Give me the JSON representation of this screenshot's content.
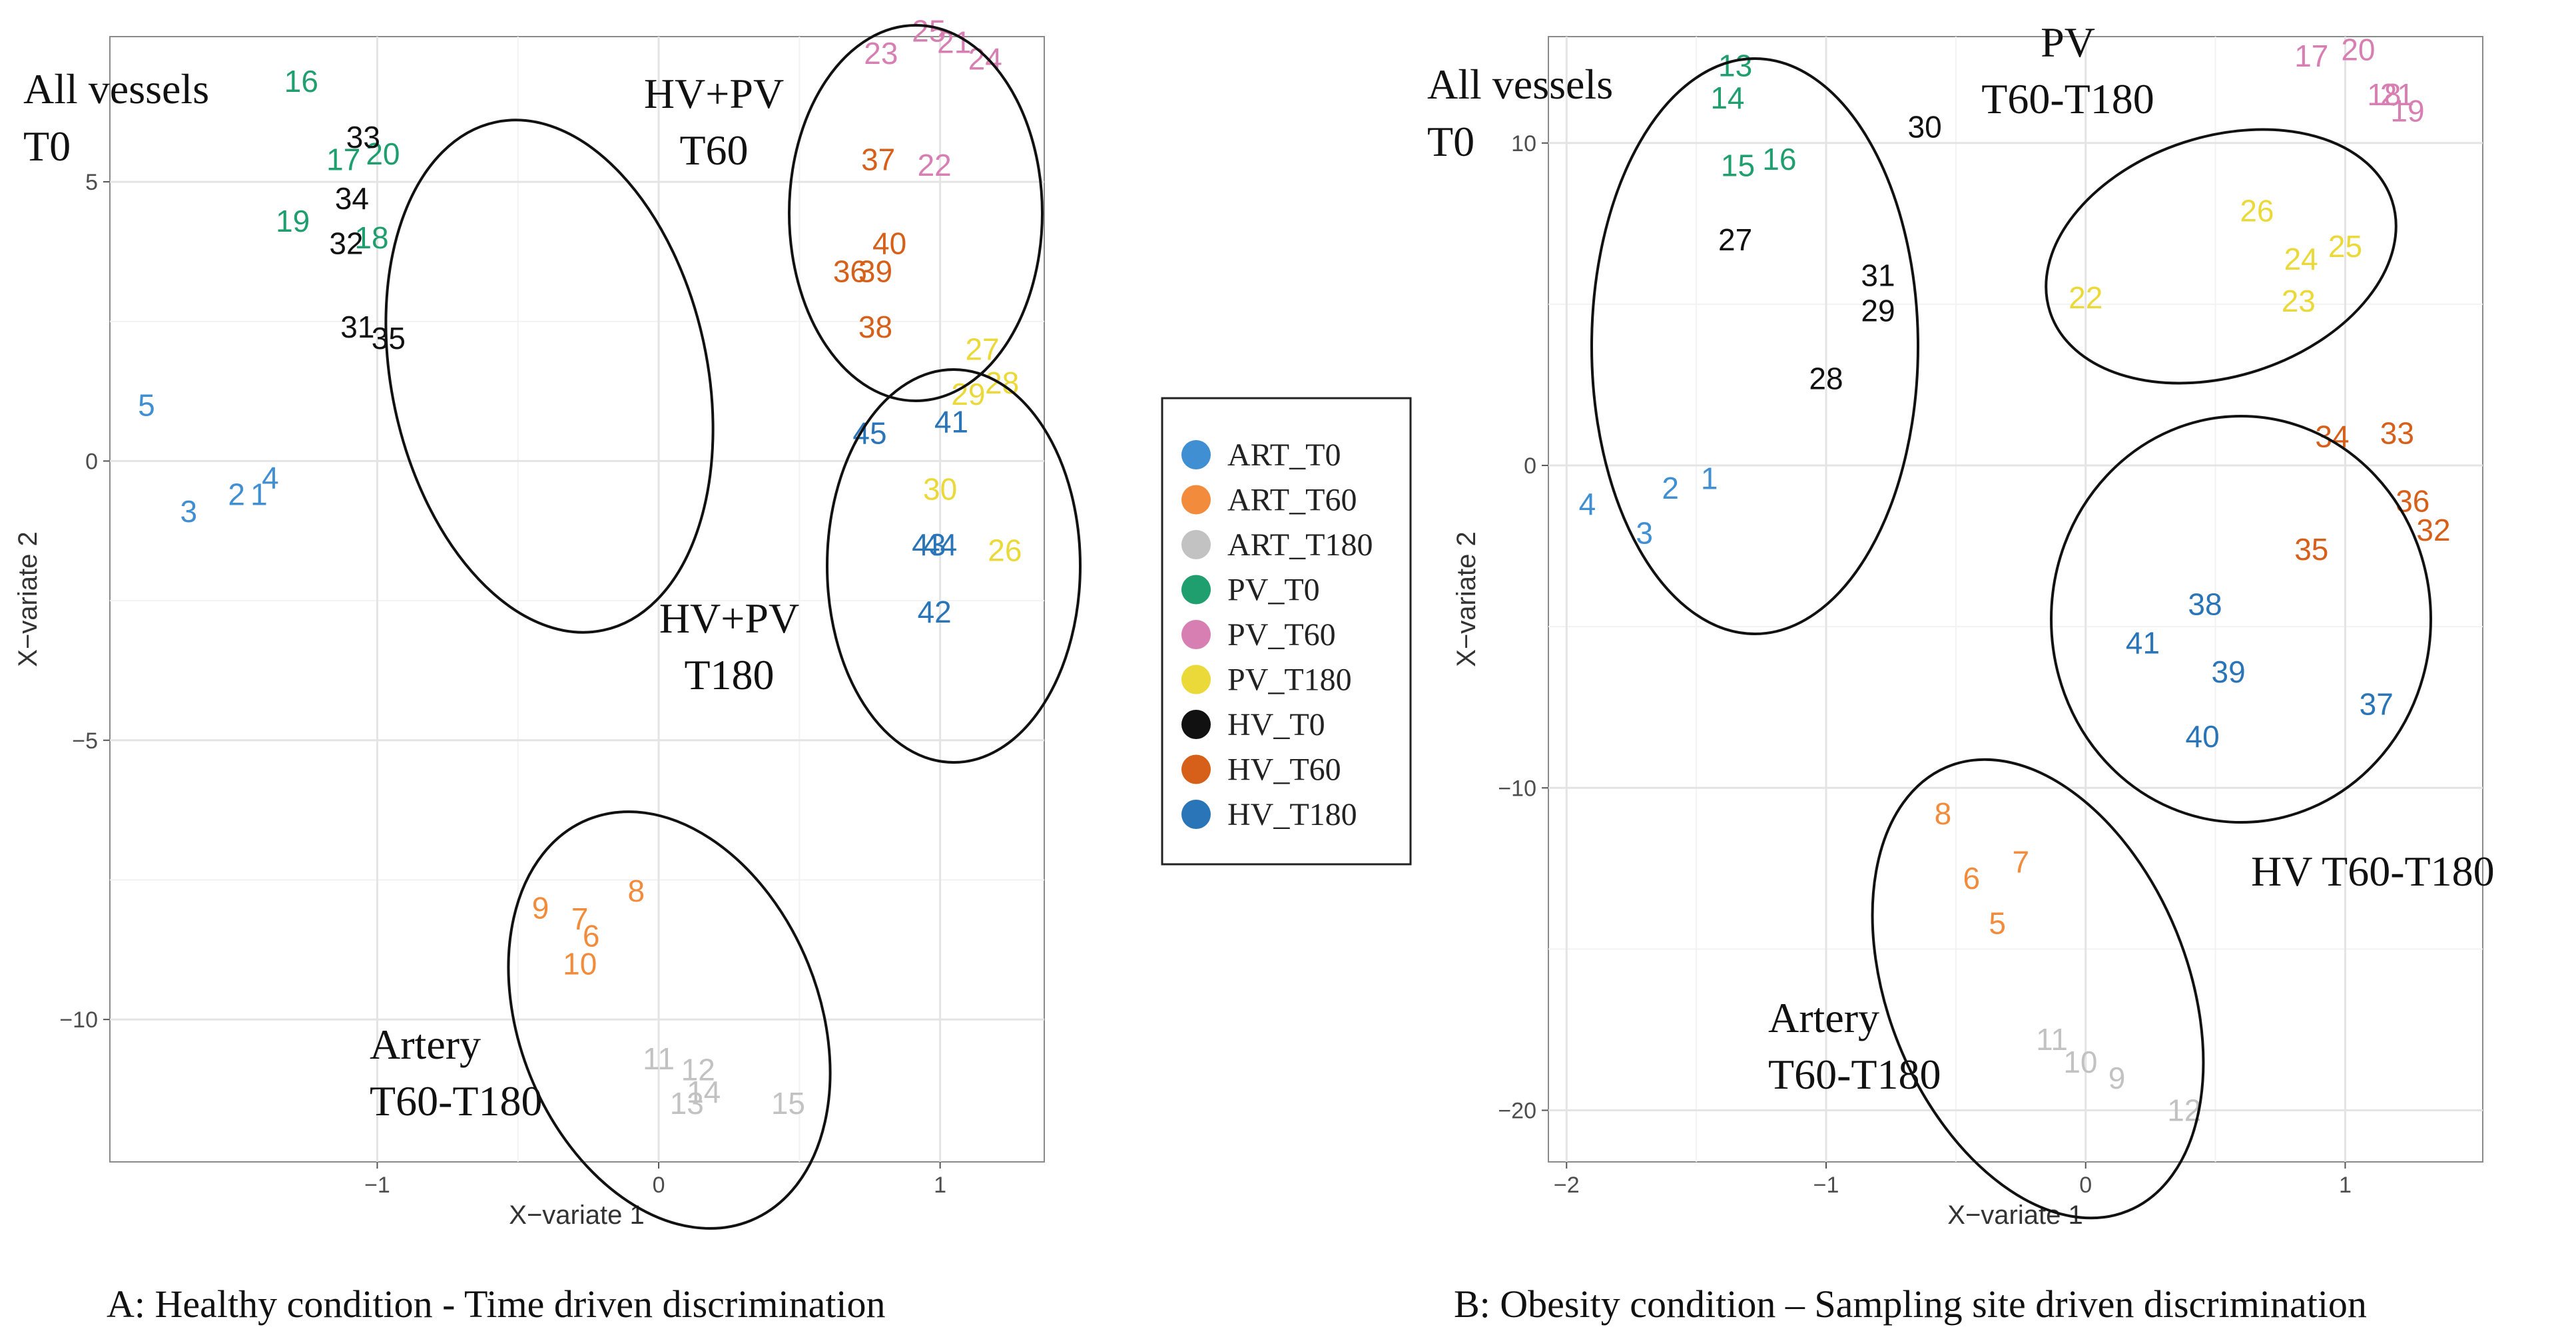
{
  "legend": [
    {
      "name": "ART_T0",
      "color": "#3f8fd2"
    },
    {
      "name": "ART_T60",
      "color": "#f28c3c"
    },
    {
      "name": "ART_T180",
      "color": "#c2c2c2"
    },
    {
      "name": "PV_T0",
      "color": "#1f9e6e"
    },
    {
      "name": "PV_T60",
      "color": "#d77fb3"
    },
    {
      "name": "PV_T180",
      "color": "#ebd93a"
    },
    {
      "name": "HV_T0",
      "color": "#111111"
    },
    {
      "name": "HV_T60",
      "color": "#d65f1a"
    },
    {
      "name": "HV_T180",
      "color": "#2a75b8"
    }
  ],
  "chart_data": [
    {
      "type": "scatter",
      "title": "",
      "caption": "A: Healthy condition - Time driven discrimination",
      "xlabel": "X−variate 1",
      "ylabel": "X−variate 2",
      "xlim": [
        -1.95,
        1.37
      ],
      "ylim": [
        -12.55,
        7.6
      ],
      "xticks": [
        -1,
        0,
        1
      ],
      "yticks": [
        5,
        0,
        -5,
        -10
      ],
      "xtick_labels": [
        "−1",
        "0",
        "1"
      ],
      "ytick_labels": [
        "5",
        "0",
        "−5",
        "−10"
      ],
      "points": [
        {
          "label": "5",
          "group": "ART_T0",
          "x": -1.82,
          "y": 1.0
        },
        {
          "label": "3",
          "group": "ART_T0",
          "x": -1.67,
          "y": -0.9
        },
        {
          "label": "2",
          "group": "ART_T0",
          "x": -1.5,
          "y": -0.6
        },
        {
          "label": "1",
          "group": "ART_T0",
          "x": -1.42,
          "y": -0.6
        },
        {
          "label": "4",
          "group": "ART_T0",
          "x": -1.38,
          "y": -0.3
        },
        {
          "label": "16",
          "group": "PV_T0",
          "x": -1.27,
          "y": 6.8
        },
        {
          "label": "17",
          "group": "PV_T0",
          "x": -1.12,
          "y": 5.4
        },
        {
          "label": "20",
          "group": "PV_T0",
          "x": -0.98,
          "y": 5.5
        },
        {
          "label": "19",
          "group": "PV_T0",
          "x": -1.3,
          "y": 4.3
        },
        {
          "label": "18",
          "group": "PV_T0",
          "x": -1.02,
          "y": 4.0
        },
        {
          "label": "33",
          "group": "HV_T0",
          "x": -1.05,
          "y": 5.8
        },
        {
          "label": "34",
          "group": "HV_T0",
          "x": -1.09,
          "y": 4.7
        },
        {
          "label": "32",
          "group": "HV_T0",
          "x": -1.11,
          "y": 3.9
        },
        {
          "label": "31",
          "group": "HV_T0",
          "x": -1.07,
          "y": 2.4
        },
        {
          "label": "35",
          "group": "HV_T0",
          "x": -0.96,
          "y": 2.2
        },
        {
          "label": "23",
          "group": "PV_T60",
          "x": 0.79,
          "y": 7.3
        },
        {
          "label": "25",
          "group": "PV_T60",
          "x": 0.96,
          "y": 7.7
        },
        {
          "label": "21",
          "group": "PV_T60",
          "x": 1.05,
          "y": 7.5
        },
        {
          "label": "24",
          "group": "PV_T60",
          "x": 1.16,
          "y": 7.2
        },
        {
          "label": "22",
          "group": "PV_T60",
          "x": 0.98,
          "y": 5.3
        },
        {
          "label": "37",
          "group": "HV_T60",
          "x": 0.78,
          "y": 5.4
        },
        {
          "label": "40",
          "group": "HV_T60",
          "x": 0.82,
          "y": 3.9
        },
        {
          "label": "36",
          "group": "HV_T60",
          "x": 0.68,
          "y": 3.4
        },
        {
          "label": "39",
          "group": "HV_T60",
          "x": 0.77,
          "y": 3.4
        },
        {
          "label": "38",
          "group": "HV_T60",
          "x": 0.77,
          "y": 2.4
        },
        {
          "label": "27",
          "group": "PV_T180",
          "x": 1.15,
          "y": 2.0
        },
        {
          "label": "28",
          "group": "PV_T180",
          "x": 1.22,
          "y": 1.4
        },
        {
          "label": "29",
          "group": "PV_T180",
          "x": 1.1,
          "y": 1.2
        },
        {
          "label": "30",
          "group": "PV_T180",
          "x": 1.0,
          "y": -0.5
        },
        {
          "label": "26",
          "group": "PV_T180",
          "x": 1.23,
          "y": -1.6
        },
        {
          "label": "45",
          "group": "HV_T180",
          "x": 0.75,
          "y": 0.5
        },
        {
          "label": "41",
          "group": "HV_T180",
          "x": 1.04,
          "y": 0.7
        },
        {
          "label": "43",
          "group": "HV_T180",
          "x": 0.96,
          "y": -1.5
        },
        {
          "label": "44",
          "group": "HV_T180",
          "x": 1.0,
          "y": -1.5
        },
        {
          "label": "42",
          "group": "HV_T180",
          "x": 0.98,
          "y": -2.7
        },
        {
          "label": "8",
          "group": "ART_T60",
          "x": -0.08,
          "y": -7.7
        },
        {
          "label": "9",
          "group": "ART_T60",
          "x": -0.42,
          "y": -8.0
        },
        {
          "label": "7",
          "group": "ART_T60",
          "x": -0.28,
          "y": -8.2
        },
        {
          "label": "6",
          "group": "ART_T60",
          "x": -0.24,
          "y": -8.5
        },
        {
          "label": "10",
          "group": "ART_T60",
          "x": -0.28,
          "y": -9.0
        },
        {
          "label": "11",
          "group": "ART_T180",
          "x": 0.0,
          "y": -10.7
        },
        {
          "label": "12",
          "group": "ART_T180",
          "x": 0.14,
          "y": -10.9
        },
        {
          "label": "14",
          "group": "ART_T180",
          "x": 0.16,
          "y": -11.3
        },
        {
          "label": "13",
          "group": "ART_T180",
          "x": 0.1,
          "y": -11.5
        },
        {
          "label": "15",
          "group": "ART_T180",
          "x": 0.46,
          "y": -11.5
        }
      ],
      "annotations": [
        {
          "lines": [
            "All vessels",
            "T0"
          ]
        },
        {
          "lines": [
            "HV+PV",
            "T60"
          ]
        },
        {
          "lines": [
            "HV+PV",
            "T180"
          ]
        },
        {
          "lines": [
            "Artery",
            "T60-T180"
          ]
        }
      ]
    },
    {
      "type": "scatter",
      "title": "",
      "caption": "B: Obesity condition – Sampling site driven discrimination",
      "xlabel": "X−variate 1",
      "ylabel": "X−variate 2",
      "xlim": [
        -2.07,
        1.53
      ],
      "ylim": [
        -21.6,
        13.3
      ],
      "xticks": [
        -2,
        -1,
        0,
        1
      ],
      "yticks": [
        10,
        0,
        -10,
        -20
      ],
      "xtick_labels": [
        "−2",
        "−1",
        "0",
        "1"
      ],
      "ytick_labels": [
        "10",
        "0",
        "−10",
        "−20"
      ],
      "points": [
        {
          "label": "13",
          "group": "PV_T0",
          "x": -1.35,
          "y": 12.4
        },
        {
          "label": "14",
          "group": "PV_T0",
          "x": -1.38,
          "y": 11.4
        },
        {
          "label": "15",
          "group": "PV_T0",
          "x": -1.34,
          "y": 9.3
        },
        {
          "label": "16",
          "group": "PV_T0",
          "x": -1.18,
          "y": 9.5
        },
        {
          "label": "30",
          "group": "HV_T0",
          "x": -0.62,
          "y": 10.5
        },
        {
          "label": "27",
          "group": "HV_T0",
          "x": -1.35,
          "y": 7.0
        },
        {
          "label": "31",
          "group": "HV_T0",
          "x": -0.8,
          "y": 5.9
        },
        {
          "label": "29",
          "group": "HV_T0",
          "x": -0.8,
          "y": 4.8
        },
        {
          "label": "28",
          "group": "HV_T0",
          "x": -1.0,
          "y": 2.7
        },
        {
          "label": "4",
          "group": "ART_T0",
          "x": -1.92,
          "y": -1.2
        },
        {
          "label": "2",
          "group": "ART_T0",
          "x": -1.6,
          "y": -0.7
        },
        {
          "label": "1",
          "group": "ART_T0",
          "x": -1.45,
          "y": -0.4
        },
        {
          "label": "3",
          "group": "ART_T0",
          "x": -1.7,
          "y": -2.1
        },
        {
          "label": "17",
          "group": "PV_T60",
          "x": 0.87,
          "y": 12.7
        },
        {
          "label": "20",
          "group": "PV_T60",
          "x": 1.05,
          "y": 12.9
        },
        {
          "label": "18",
          "group": "PV_T60",
          "x": 1.15,
          "y": 11.5
        },
        {
          "label": "21",
          "group": "PV_T60",
          "x": 1.2,
          "y": 11.5
        },
        {
          "label": "19",
          "group": "PV_T60",
          "x": 1.24,
          "y": 11.0
        },
        {
          "label": "26",
          "group": "PV_T180",
          "x": 0.66,
          "y": 7.9
        },
        {
          "label": "24",
          "group": "PV_T180",
          "x": 0.83,
          "y": 6.4
        },
        {
          "label": "25",
          "group": "PV_T180",
          "x": 1.0,
          "y": 6.8
        },
        {
          "label": "23",
          "group": "PV_T180",
          "x": 0.82,
          "y": 5.1
        },
        {
          "label": "22",
          "group": "PV_T180",
          "x": 0.0,
          "y": 5.2
        },
        {
          "label": "34",
          "group": "HV_T60",
          "x": 0.95,
          "y": 0.9
        },
        {
          "label": "33",
          "group": "HV_T60",
          "x": 1.2,
          "y": 1.0
        },
        {
          "label": "36",
          "group": "HV_T60",
          "x": 1.26,
          "y": -1.1
        },
        {
          "label": "32",
          "group": "HV_T60",
          "x": 1.34,
          "y": -2.0
        },
        {
          "label": "35",
          "group": "HV_T60",
          "x": 0.87,
          "y": -2.6
        },
        {
          "label": "38",
          "group": "HV_T180",
          "x": 0.46,
          "y": -4.3
        },
        {
          "label": "41",
          "group": "HV_T180",
          "x": 0.22,
          "y": -5.5
        },
        {
          "label": "39",
          "group": "HV_T180",
          "x": 0.55,
          "y": -6.4
        },
        {
          "label": "37",
          "group": "HV_T180",
          "x": 1.12,
          "y": -7.4
        },
        {
          "label": "40",
          "group": "HV_T180",
          "x": 0.45,
          "y": -8.4
        },
        {
          "label": "8",
          "group": "ART_T60",
          "x": -0.55,
          "y": -10.8
        },
        {
          "label": "7",
          "group": "ART_T60",
          "x": -0.25,
          "y": -12.3
        },
        {
          "label": "6",
          "group": "ART_T60",
          "x": -0.44,
          "y": -12.8
        },
        {
          "label": "5",
          "group": "ART_T60",
          "x": -0.34,
          "y": -14.2
        },
        {
          "label": "11",
          "group": "ART_T180",
          "x": -0.13,
          "y": -17.8
        },
        {
          "label": "10",
          "group": "ART_T180",
          "x": -0.02,
          "y": -18.5
        },
        {
          "label": "9",
          "group": "ART_T180",
          "x": 0.12,
          "y": -19.0
        },
        {
          "label": "12",
          "group": "ART_T180",
          "x": 0.38,
          "y": -20.0
        }
      ],
      "annotations": [
        {
          "lines": [
            "All vessels",
            "T0"
          ]
        },
        {
          "lines": [
            "PV",
            "T60-T180"
          ]
        },
        {
          "lines": [
            "HV T60-T180"
          ]
        },
        {
          "lines": [
            "Artery",
            "T60-T180"
          ]
        }
      ]
    }
  ]
}
